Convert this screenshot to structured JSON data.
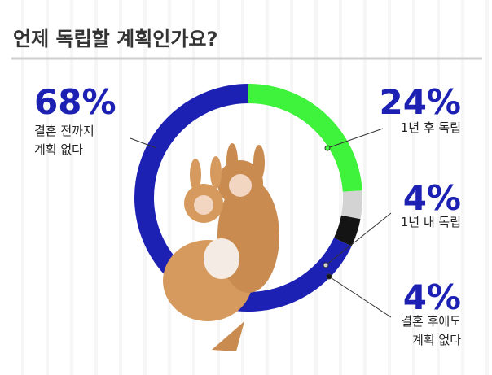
{
  "chart_data": {
    "type": "donut",
    "title": "언제 독립할 계획인가요?",
    "categories": [
      "1년 후 독립",
      "1년 내 독립",
      "결혼 후에도\n계획 없다",
      "결혼 전까지\n계획 없다"
    ],
    "values": [
      24,
      4,
      4,
      68
    ],
    "value_labels": [
      "24%",
      "4%",
      "4%",
      "68%"
    ],
    "colors": [
      "#3ff23b",
      "#d3d3d3",
      "#141414",
      "#1c21b3"
    ]
  }
}
